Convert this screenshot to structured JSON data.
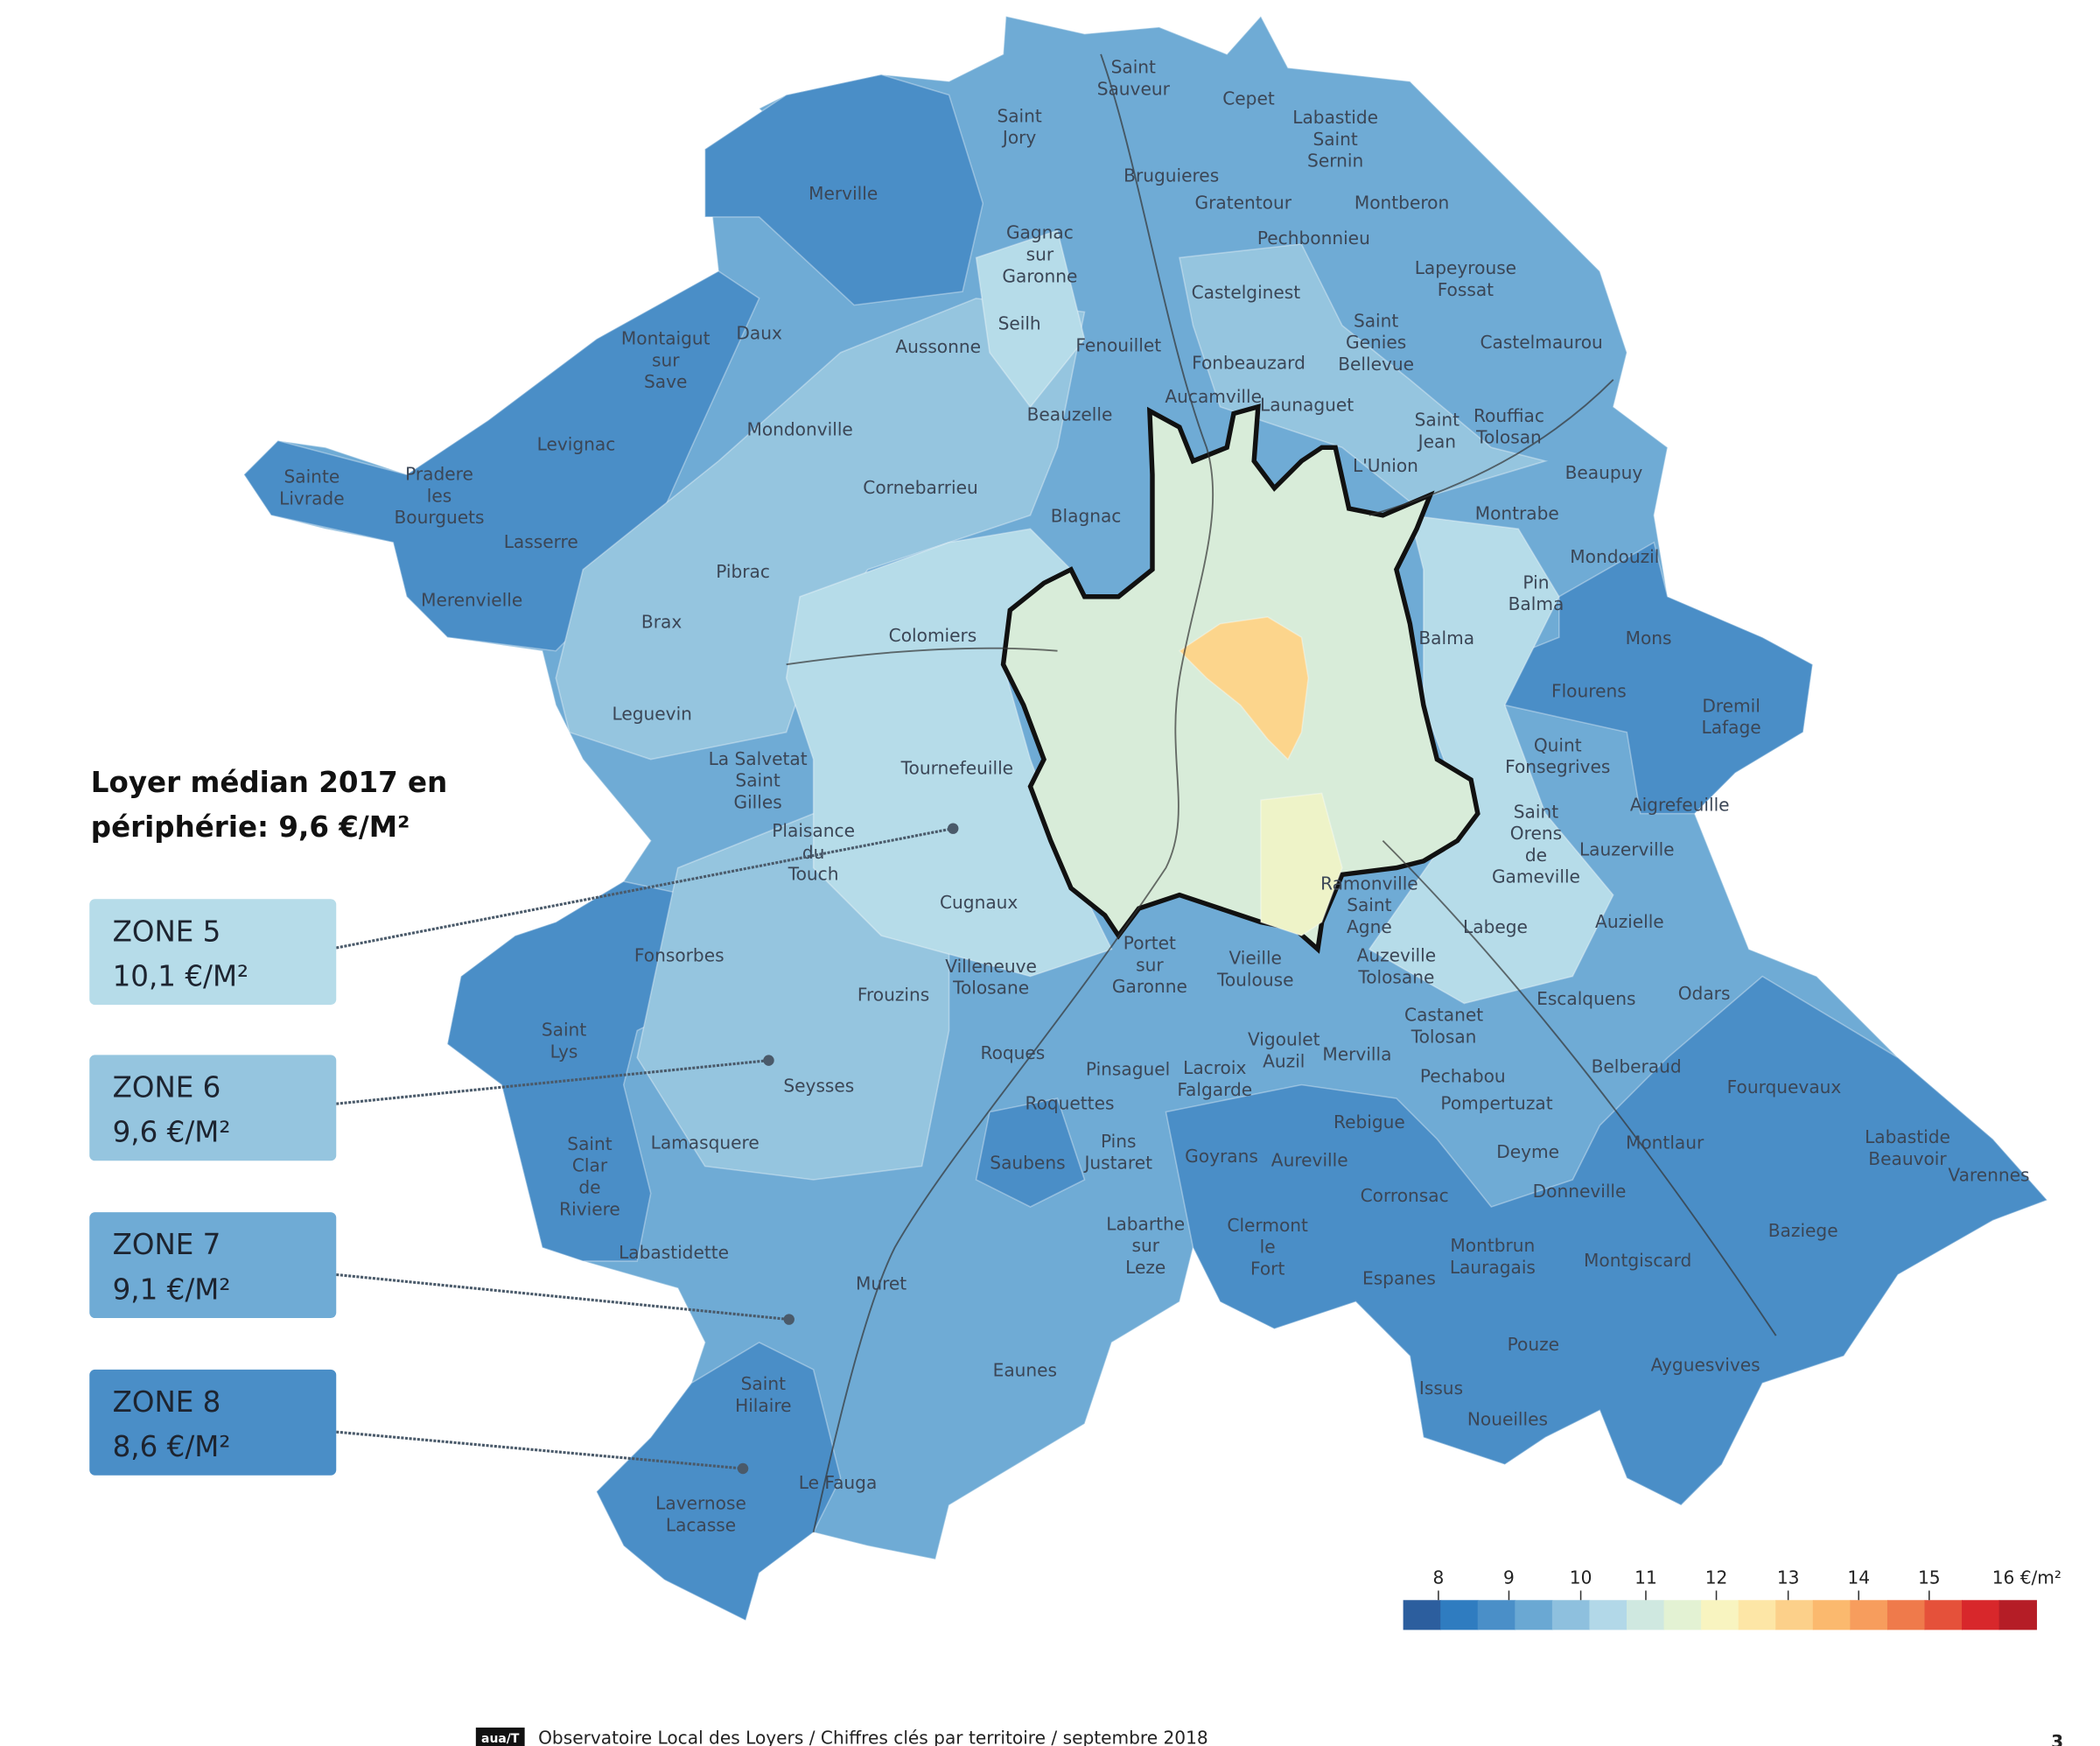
{
  "title": [
    "Loyer médian 2017 en",
    "périphérie: 9,6 €/M²"
  ],
  "zones": [
    {
      "name": "ZONE 5",
      "value": "10,1 €/M²"
    },
    {
      "name": "ZONE 6",
      "value": "9,6 €/M²"
    },
    {
      "name": "ZONE 7",
      "value": "9,1 €/M²"
    },
    {
      "name": "ZONE 8",
      "value": "8,6 €/M²"
    }
  ],
  "legend": {
    "ticks": [
      "8",
      "9",
      "10",
      "11",
      "12",
      "13",
      "14",
      "15",
      "16 €/m²"
    ]
  },
  "communes": [
    [
      "Saint",
      "Sauveur"
    ],
    [
      "Cepet"
    ],
    [
      "Saint",
      "Jory"
    ],
    [
      "Labastide",
      "Saint",
      "Sernin"
    ],
    [
      "Bruguieres"
    ],
    [
      "Merville"
    ],
    [
      "Gratentour"
    ],
    [
      "Montberon"
    ],
    [
      "Gagnac",
      "sur",
      "Garonne"
    ],
    [
      "Pechbonnieu"
    ],
    [
      "Lapeyrouse",
      "Fossat"
    ],
    [
      "Castelginest"
    ],
    [
      "Seilh"
    ],
    [
      "Saint",
      "Genies",
      "Bellevue"
    ],
    [
      "Daux"
    ],
    [
      "Montaigut",
      "sur",
      "Save"
    ],
    [
      "Aussonne"
    ],
    [
      "Fenouillet"
    ],
    [
      "Castelmaurou"
    ],
    [
      "Fonbeauzard"
    ],
    [
      "Aucamville"
    ],
    [
      "Launaguet"
    ],
    [
      "Beauzelle"
    ],
    [
      "Saint",
      "Jean"
    ],
    [
      "Rouffiac",
      "Tolosan"
    ],
    [
      "Mondonville"
    ],
    [
      "Levignac"
    ],
    [
      "Sainte",
      "Livrade"
    ],
    [
      "Pradere",
      "les",
      "Bourguets"
    ],
    [
      "L'Union"
    ],
    [
      "Beaupuy"
    ],
    [
      "Cornebarrieu"
    ],
    [
      "Blagnac"
    ],
    [
      "Montrabe"
    ],
    [
      "Lasserre"
    ],
    [
      "Mondouzil"
    ],
    [
      "Pibrac"
    ],
    [
      "Pin",
      "Balma"
    ],
    [
      "Merenvielle"
    ],
    [
      "Brax"
    ],
    [
      "Colomiers"
    ],
    [
      "Balma"
    ],
    [
      "Mons"
    ],
    [
      "Flourens"
    ],
    [
      "Dremil",
      "Lafage"
    ],
    [
      "Leguevin"
    ],
    [
      "Quint",
      "Fonsegrives"
    ],
    [
      "La Salvetat",
      "Saint",
      "Gilles"
    ],
    [
      "Tournefeuille"
    ],
    [
      "Aigrefeuille"
    ],
    [
      "Saint",
      "Orens",
      "de",
      "Gameville"
    ],
    [
      "Plaisance",
      "du",
      "Touch"
    ],
    [
      "Lauzerville"
    ],
    [
      "Ramonville",
      "Saint",
      "Agne"
    ],
    [
      "Cugnaux"
    ],
    [
      "Labege"
    ],
    [
      "Auzielle"
    ],
    [
      "Portet",
      "sur",
      "Garonne"
    ],
    [
      "Fonsorbes"
    ],
    [
      "Vieille",
      "Toulouse"
    ],
    [
      "Auzeville",
      "Tolosane"
    ],
    [
      "Villeneuve",
      "Tolosane"
    ],
    [
      "Frouzins"
    ],
    [
      "Odars"
    ],
    [
      "Escalquens"
    ],
    [
      "Castanet",
      "Tolosan"
    ],
    [
      "Saint",
      "Lys"
    ],
    [
      "Vigoulet",
      "Auzil"
    ],
    [
      "Roques"
    ],
    [
      "Mervilla"
    ],
    [
      "Belberaud"
    ],
    [
      "Pinsaguel"
    ],
    [
      "Lacroix",
      "Falgarde"
    ],
    [
      "Pechabou"
    ],
    [
      "Seysses"
    ],
    [
      "Fourquevaux"
    ],
    [
      "Roquettes"
    ],
    [
      "Pompertuzat"
    ],
    [
      "Rebigue"
    ],
    [
      "Montlaur"
    ],
    [
      "Lamasquere"
    ],
    [
      "Saint",
      "Clar",
      "de",
      "Riviere"
    ],
    [
      "Pins",
      "Justaret"
    ],
    [
      "Labastide",
      "Beauvoir"
    ],
    [
      "Goyrans"
    ],
    [
      "Aureville"
    ],
    [
      "Deyme"
    ],
    [
      "Saubens"
    ],
    [
      "Varennes"
    ],
    [
      "Corronsac"
    ],
    [
      "Donneville"
    ],
    [
      "Labarthe",
      "sur",
      "Leze"
    ],
    [
      "Clermont",
      "le",
      "Fort"
    ],
    [
      "Baziege"
    ],
    [
      "Labastidette"
    ],
    [
      "Montbrun",
      "Lauragais"
    ],
    [
      "Montgiscard"
    ],
    [
      "Espanes"
    ],
    [
      "Muret"
    ],
    [
      "Pouze"
    ],
    [
      "Ayguesvives"
    ],
    [
      "Eaunes"
    ],
    [
      "Issus"
    ],
    [
      "Saint",
      "Hilaire"
    ],
    [
      "Noueilles"
    ],
    [
      "Le Fauga"
    ],
    [
      "Lavernose",
      "Lacasse"
    ]
  ],
  "footer": {
    "logo": "aua/T",
    "text": "Observatoire Local des Loyers / Chiffres clés par territoire / septembre 2018",
    "page": "3"
  }
}
